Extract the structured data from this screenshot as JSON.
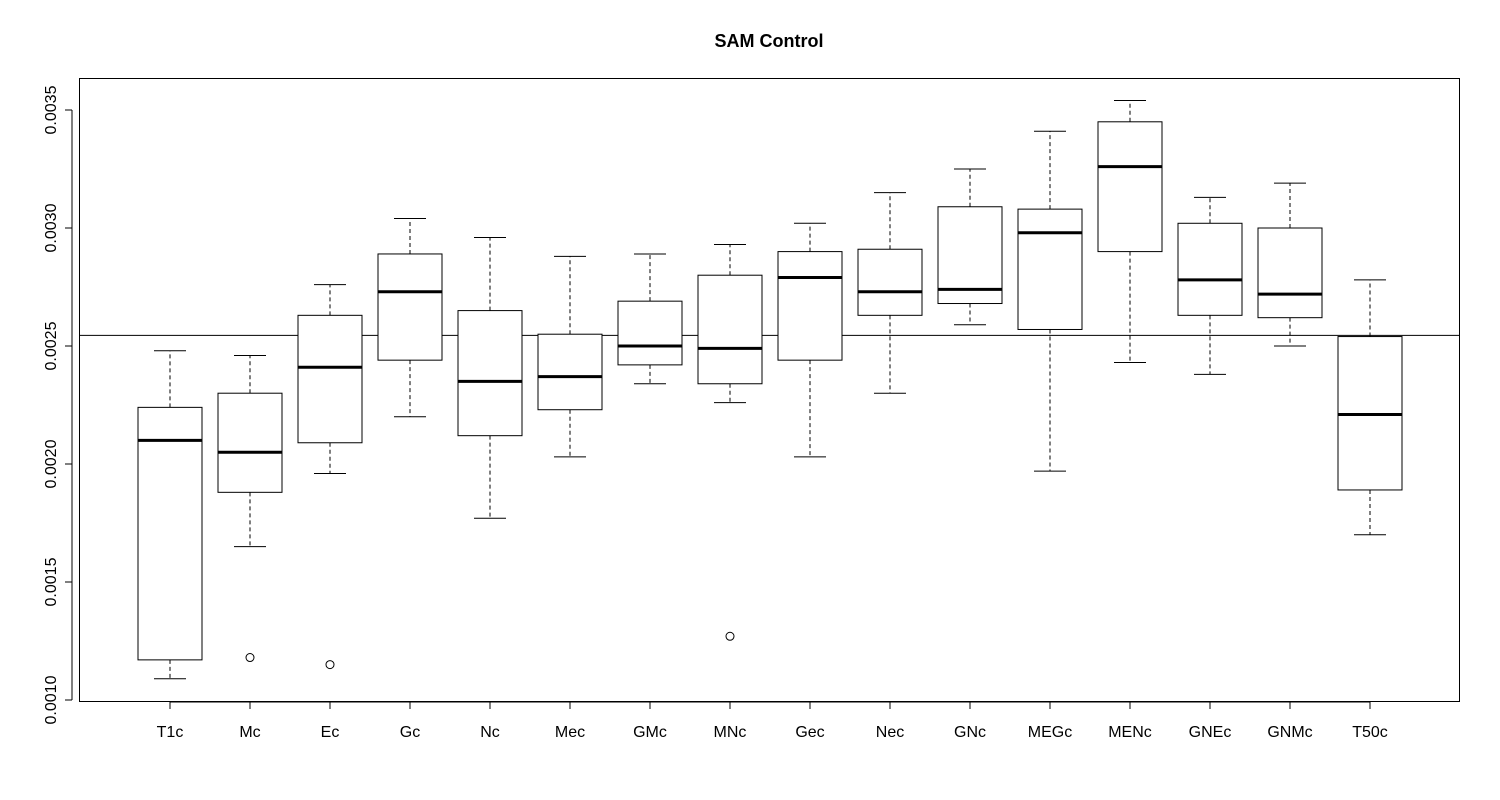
{
  "chart_data": {
    "type": "boxplot",
    "title": "SAM Control",
    "xlabel": "",
    "ylabel": "",
    "ylim": [
      0.00095,
      0.00358
    ],
    "yticks": [
      0.001,
      0.0015,
      0.002,
      0.0025,
      0.003,
      0.0035
    ],
    "ytick_labels": [
      "0.0010",
      "0.0015",
      "0.0020",
      "0.0025",
      "0.0030",
      "0.0035"
    ],
    "reference_line": 0.002545,
    "categories": [
      "T1c",
      "Mc",
      "Ec",
      "Gc",
      "Nc",
      "Mec",
      "GMc",
      "MNc",
      "Gec",
      "Nec",
      "GNc",
      "MEGc",
      "MENc",
      "GNEc",
      "GNMc",
      "T50c"
    ],
    "boxes": [
      {
        "label": "T1c",
        "whisker_low": 0.00109,
        "q1": 0.00117,
        "median": 0.0021,
        "q3": 0.00224,
        "whisker_high": 0.00248,
        "outliers": []
      },
      {
        "label": "Mc",
        "whisker_low": 0.00165,
        "q1": 0.00188,
        "median": 0.00205,
        "q3": 0.0023,
        "whisker_high": 0.00246,
        "outliers": [
          0.00118
        ]
      },
      {
        "label": "Ec",
        "whisker_low": 0.00196,
        "q1": 0.00209,
        "median": 0.00241,
        "q3": 0.00263,
        "whisker_high": 0.00276,
        "outliers": [
          0.00115
        ]
      },
      {
        "label": "Gc",
        "whisker_low": 0.0022,
        "q1": 0.00244,
        "median": 0.00273,
        "q3": 0.00289,
        "whisker_high": 0.00304,
        "outliers": []
      },
      {
        "label": "Nc",
        "whisker_low": 0.00177,
        "q1": 0.00212,
        "median": 0.00235,
        "q3": 0.00265,
        "whisker_high": 0.00296,
        "outliers": []
      },
      {
        "label": "Mec",
        "whisker_low": 0.00203,
        "q1": 0.00223,
        "median": 0.00237,
        "q3": 0.00255,
        "whisker_high": 0.00288,
        "outliers": []
      },
      {
        "label": "GMc",
        "whisker_low": 0.00234,
        "q1": 0.00242,
        "median": 0.0025,
        "q3": 0.00269,
        "whisker_high": 0.00289,
        "outliers": []
      },
      {
        "label": "MNc",
        "whisker_low": 0.00226,
        "q1": 0.00234,
        "median": 0.00249,
        "q3": 0.0028,
        "whisker_high": 0.00293,
        "outliers": [
          0.00127
        ]
      },
      {
        "label": "Gec",
        "whisker_low": 0.00203,
        "q1": 0.00244,
        "median": 0.00279,
        "q3": 0.0029,
        "whisker_high": 0.00302,
        "outliers": []
      },
      {
        "label": "Nec",
        "whisker_low": 0.0023,
        "q1": 0.00263,
        "median": 0.00273,
        "q3": 0.00291,
        "whisker_high": 0.00315,
        "outliers": []
      },
      {
        "label": "GNc",
        "whisker_low": 0.00259,
        "q1": 0.00268,
        "median": 0.00274,
        "q3": 0.00309,
        "whisker_high": 0.00325,
        "outliers": []
      },
      {
        "label": "MEGc",
        "whisker_low": 0.00197,
        "q1": 0.00257,
        "median": 0.00298,
        "q3": 0.00308,
        "whisker_high": 0.00341,
        "outliers": []
      },
      {
        "label": "MENc",
        "whisker_low": 0.00243,
        "q1": 0.0029,
        "median": 0.00326,
        "q3": 0.00345,
        "whisker_high": 0.00354,
        "outliers": []
      },
      {
        "label": "GNEc",
        "whisker_low": 0.00238,
        "q1": 0.00263,
        "median": 0.00278,
        "q3": 0.00302,
        "whisker_high": 0.00313,
        "outliers": []
      },
      {
        "label": "GNMc",
        "whisker_low": 0.0025,
        "q1": 0.00262,
        "median": 0.00272,
        "q3": 0.003,
        "whisker_high": 0.00319,
        "outliers": []
      },
      {
        "label": "T50c",
        "whisker_low": 0.0017,
        "q1": 0.00189,
        "median": 0.00221,
        "q3": 0.00254,
        "whisker_high": 0.00278,
        "outliers": []
      }
    ],
    "grid": false,
    "legend": "none"
  }
}
